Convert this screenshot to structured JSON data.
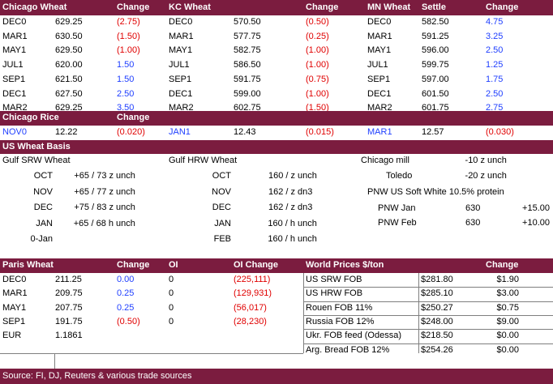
{
  "header": {
    "chicago_wheat": "Chicago Wheat",
    "change": "Change",
    "kc_wheat": "KC Wheat",
    "mn_wheat": "MN Wheat",
    "settle": "Settle"
  },
  "wheat_rows": [
    {
      "c_m": "DEC0",
      "c_p": "629.25",
      "c_c": "(2.75)",
      "k_m": "DEC0",
      "k_p": "570.50",
      "k_c": "(0.50)",
      "m_m": "DEC0",
      "m_p": "582.50",
      "m_c": "4.75"
    },
    {
      "c_m": "MAR1",
      "c_p": "630.50",
      "c_c": "(1.50)",
      "k_m": "MAR1",
      "k_p": "577.75",
      "k_c": "(0.25)",
      "m_m": "MAR1",
      "m_p": "591.25",
      "m_c": "3.25"
    },
    {
      "c_m": "MAY1",
      "c_p": "629.50",
      "c_c": "(1.00)",
      "k_m": "MAY1",
      "k_p": "582.75",
      "k_c": "(1.00)",
      "m_m": "MAY1",
      "m_p": "596.00",
      "m_c": "2.50"
    },
    {
      "c_m": "JUL1",
      "c_p": "620.00",
      "c_c": "1.50",
      "k_m": "JUL1",
      "k_p": "586.50",
      "k_c": "(1.00)",
      "m_m": "JUL1",
      "m_p": "599.75",
      "m_c": "1.25"
    },
    {
      "c_m": "SEP1",
      "c_p": "621.50",
      "c_c": "1.50",
      "k_m": "SEP1",
      "k_p": "591.75",
      "k_c": "(0.75)",
      "m_m": "SEP1",
      "m_p": "597.00",
      "m_c": "1.75"
    },
    {
      "c_m": "DEC1",
      "c_p": "627.50",
      "c_c": "2.50",
      "k_m": "DEC1",
      "k_p": "599.00",
      "k_c": "(1.00)",
      "m_m": "DEC1",
      "m_p": "601.50",
      "m_c": "2.50"
    },
    {
      "c_m": "MAR2",
      "c_p": "629.25",
      "c_c": "3.50",
      "k_m": "MAR2",
      "k_p": "602.75",
      "k_c": "(1.50)",
      "m_m": "MAR2",
      "m_p": "601.75",
      "m_c": "2.75"
    }
  ],
  "rice": {
    "title": "Chicago Rice",
    "change": "Change",
    "items": [
      {
        "m": "NOV0",
        "p": "12.22",
        "c": "(0.020)"
      },
      {
        "m": "JAN1",
        "p": "12.43",
        "c": "(0.015)"
      },
      {
        "m": "MAR1",
        "p": "12.57",
        "c": "(0.030)"
      }
    ]
  },
  "basis": {
    "title": "US Wheat Basis",
    "gulf_srw": "Gulf SRW Wheat",
    "gulf_hrw": "Gulf HRW Wheat",
    "srw_rows": [
      {
        "m": "OCT",
        "v": "+65 / 73 z",
        "c": "unch"
      },
      {
        "m": "NOV",
        "v": "+65 / 77 z",
        "c": "unch"
      },
      {
        "m": "DEC",
        "v": "+75 / 83 z",
        "c": "unch"
      },
      {
        "m": "JAN",
        "v": "+65 / 68 h",
        "c": "unch"
      },
      {
        "m": "0-Jan",
        "v": "",
        "c": ""
      }
    ],
    "hrw_rows": [
      {
        "m": "OCT",
        "v": "160 / z",
        "c": "unch"
      },
      {
        "m": "NOV",
        "v": "162 / z",
        "c": "dn3"
      },
      {
        "m": "DEC",
        "v": "162 / z",
        "c": "dn3"
      },
      {
        "m": "JAN",
        "v": "160 / h",
        "c": "unch"
      },
      {
        "m": "FEB",
        "v": "160 / h",
        "c": "unch"
      }
    ],
    "chicago_mill": {
      "label": "Chicago mill",
      "v": "-10 z",
      "c": "unch"
    },
    "toledo": {
      "label": "Toledo",
      "v": "-20 z",
      "c": "unch"
    },
    "pnw_title": "PNW US Soft White 10.5% protein",
    "pnw_rows": [
      {
        "m": "PNW Jan",
        "v": "630",
        "c": "+15.00"
      },
      {
        "m": "PNW Feb",
        "v": "630",
        "c": "+10.00"
      }
    ]
  },
  "paris": {
    "title": "Paris Wheat",
    "change": "Change",
    "oi": "OI",
    "oi_change": "OI Change",
    "rows": [
      {
        "m": "DEC0",
        "p": "211.25",
        "c": "0.00",
        "oi": "0",
        "oic": "(225,111)"
      },
      {
        "m": "MAR1",
        "p": "209.75",
        "c": "0.25",
        "oi": "0",
        "oic": "(129,931)"
      },
      {
        "m": "MAY1",
        "p": "207.75",
        "c": "0.25",
        "oi": "0",
        "oic": "(56,017)"
      },
      {
        "m": "SEP1",
        "p": "191.75",
        "c": "(0.50)",
        "oi": "0",
        "oic": "(28,230)"
      }
    ],
    "eur_label": "EUR",
    "eur_value": "1.1861"
  },
  "world": {
    "title": "World Prices $/ton",
    "change": "Change",
    "rows": [
      {
        "n": "US SRW FOB",
        "p": "$281.80",
        "c": "$1.90"
      },
      {
        "n": "US HRW FOB",
        "p": "$285.10",
        "c": "$3.00"
      },
      {
        "n": "Rouen FOB 11%",
        "p": "$250.27",
        "c": "$0.75"
      },
      {
        "n": "Russia FOB 12%",
        "p": "$248.00",
        "c": "$9.00"
      },
      {
        "n": "Ukr. FOB feed (Odessa)",
        "p": "$218.50",
        "c": "$0.00"
      },
      {
        "n": "Arg. Bread FOB 12%",
        "p": "$254.26",
        "c": "$0.00"
      }
    ]
  },
  "footer": {
    "source": "Source: FI, DJ, Reuters & various trade sources"
  },
  "colors": {
    "header_bg": "#7b1c3f",
    "negative": "#e00000",
    "positive": "#1f3fff"
  }
}
